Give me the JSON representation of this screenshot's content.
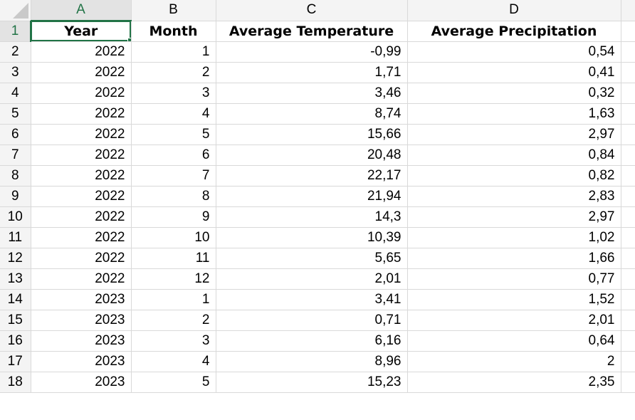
{
  "columns": [
    "A",
    "B",
    "C",
    "D"
  ],
  "headers": {
    "year": "Year",
    "month": "Month",
    "temperature": "Average Temperature",
    "precipitation": "Average Precipitation"
  },
  "row_numbers": [
    "1",
    "2",
    "3",
    "4",
    "5",
    "6",
    "7",
    "8",
    "9",
    "10",
    "11",
    "12",
    "13",
    "14",
    "15",
    "16",
    "17",
    "18"
  ],
  "rows": [
    {
      "year": "2022",
      "month": "1",
      "temp": "-0,99",
      "precip": "0,54"
    },
    {
      "year": "2022",
      "month": "2",
      "temp": "1,71",
      "precip": "0,41"
    },
    {
      "year": "2022",
      "month": "3",
      "temp": "3,46",
      "precip": "0,32"
    },
    {
      "year": "2022",
      "month": "4",
      "temp": "8,74",
      "precip": "1,63"
    },
    {
      "year": "2022",
      "month": "5",
      "temp": "15,66",
      "precip": "2,97"
    },
    {
      "year": "2022",
      "month": "6",
      "temp": "20,48",
      "precip": "0,84"
    },
    {
      "year": "2022",
      "month": "7",
      "temp": "22,17",
      "precip": "0,82"
    },
    {
      "year": "2022",
      "month": "8",
      "temp": "21,94",
      "precip": "2,83"
    },
    {
      "year": "2022",
      "month": "9",
      "temp": "14,3",
      "precip": "2,97"
    },
    {
      "year": "2022",
      "month": "10",
      "temp": "10,39",
      "precip": "1,02"
    },
    {
      "year": "2022",
      "month": "11",
      "temp": "5,65",
      "precip": "1,66"
    },
    {
      "year": "2022",
      "month": "12",
      "temp": "2,01",
      "precip": "0,77"
    },
    {
      "year": "2023",
      "month": "1",
      "temp": "3,41",
      "precip": "1,52"
    },
    {
      "year": "2023",
      "month": "2",
      "temp": "0,71",
      "precip": "2,01"
    },
    {
      "year": "2023",
      "month": "3",
      "temp": "6,16",
      "precip": "0,64"
    },
    {
      "year": "2023",
      "month": "4",
      "temp": "8,96",
      "precip": "2"
    },
    {
      "year": "2023",
      "month": "5",
      "temp": "15,23",
      "precip": "2,35"
    }
  ],
  "selection": {
    "cell": "A1"
  },
  "colors": {
    "accent": "#217346",
    "grid": "#d9d9d9",
    "header_bg": "#f4f4f4"
  }
}
